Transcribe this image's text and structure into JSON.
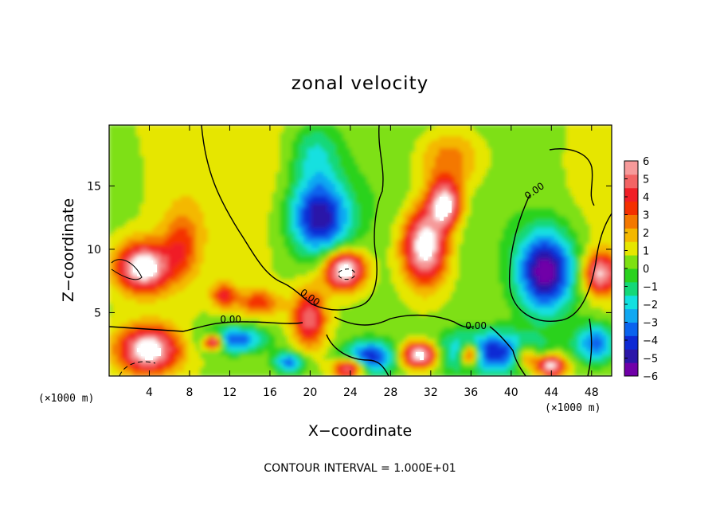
{
  "chart_data": {
    "type": "heatmap",
    "title": "zonal velocity",
    "xlabel": "X−coordinate",
    "ylabel": "Z−coordinate",
    "x_unit_left": "(×1000 m)",
    "x_unit_right": "(×1000 m)",
    "xlim": [
      0,
      50
    ],
    "ylim": [
      0,
      19.8
    ],
    "xticks": [
      4,
      8,
      12,
      16,
      20,
      24,
      28,
      32,
      36,
      40,
      44,
      48
    ],
    "xtick_labels": [
      "4",
      "8",
      "12",
      "16",
      "20",
      "24",
      "28",
      "32",
      "36",
      "40",
      "44",
      "48"
    ],
    "yticks": [
      5,
      10,
      15
    ],
    "ytick_labels": [
      "5",
      "10",
      "15"
    ],
    "colorbar": {
      "min": -6,
      "max": 6,
      "ticks": [
        6,
        5,
        4,
        3,
        2,
        1,
        0,
        -1,
        -2,
        -3,
        -4,
        -5,
        -6
      ],
      "tick_labels": [
        "6",
        "5",
        "4",
        "3",
        "2",
        "1",
        "0",
        "−1",
        "−2",
        "−3",
        "−4",
        "−5",
        "−6"
      ]
    },
    "contour_labels": [
      {
        "text": "0.00",
        "x": 42.5,
        "y": 14.4,
        "angle": -35
      },
      {
        "text": "0.00",
        "x": 19.8,
        "y": 6.0,
        "angle": 35
      },
      {
        "text": "0.00",
        "x": 12.1,
        "y": 4.2,
        "angle": 0
      },
      {
        "text": "0.00",
        "x": 36.5,
        "y": 3.7,
        "angle": 0
      }
    ],
    "features": [
      {
        "x": 3.5,
        "z": 8.5,
        "u": 6.5,
        "sx": 2.6,
        "sz": 1.9
      },
      {
        "x": 7.3,
        "z": 10.2,
        "u": 2.5,
        "sx": 1.8,
        "sz": 2.6
      },
      {
        "x": 4.0,
        "z": 2.0,
        "u": 6.5,
        "sx": 3.0,
        "sz": 1.8
      },
      {
        "x": 1.0,
        "z": 15.5,
        "u": -0.4,
        "sx": 3.5,
        "sz": 4.0
      },
      {
        "x": 21.0,
        "z": 12.5,
        "u": -5.8,
        "sx": 3.0,
        "sz": 3.0
      },
      {
        "x": 20.5,
        "z": 17.5,
        "u": -2.2,
        "sx": 2.5,
        "sz": 2.5
      },
      {
        "x": 23.5,
        "z": 8.3,
        "u": 6.8,
        "sx": 2.0,
        "sz": 1.5
      },
      {
        "x": 31.5,
        "z": 10.2,
        "u": 6.8,
        "sx": 2.2,
        "sz": 3.0
      },
      {
        "x": 33.5,
        "z": 13.5,
        "u": 6.0,
        "sx": 1.6,
        "sz": 1.8
      },
      {
        "x": 34.0,
        "z": 17.0,
        "u": 2.8,
        "sx": 3.5,
        "sz": 2.6
      },
      {
        "x": 43.5,
        "z": 8.2,
        "u": -6.5,
        "sx": 2.8,
        "sz": 3.2
      },
      {
        "x": 49.0,
        "z": 8.0,
        "u": 5.5,
        "sx": 1.6,
        "sz": 1.6
      },
      {
        "x": 38.0,
        "z": 1.8,
        "u": -5.0,
        "sx": 5.0,
        "sz": 1.6
      },
      {
        "x": 31.0,
        "z": 1.6,
        "u": 6.8,
        "sx": 1.8,
        "sz": 1.0
      },
      {
        "x": 36.0,
        "z": 1.6,
        "u": 6.5,
        "sx": 1.0,
        "sz": 0.9
      },
      {
        "x": 26.0,
        "z": 1.4,
        "u": -5.0,
        "sx": 2.5,
        "sz": 1.3
      },
      {
        "x": 10.5,
        "z": 2.6,
        "u": 6.8,
        "sx": 1.0,
        "sz": 0.6
      },
      {
        "x": 12.5,
        "z": 2.8,
        "u": -4.5,
        "sx": 3.0,
        "sz": 1.0
      },
      {
        "x": 20.0,
        "z": 4.5,
        "u": 4.5,
        "sx": 1.6,
        "sz": 2.2
      },
      {
        "x": 18.0,
        "z": 1.0,
        "u": -4.0,
        "sx": 1.5,
        "sz": 0.8
      },
      {
        "x": 24.0,
        "z": 0.6,
        "u": 6.0,
        "sx": 1.5,
        "sz": 0.7
      },
      {
        "x": 11.5,
        "z": 6.3,
        "u": 3.5,
        "sx": 1.2,
        "sz": 0.9
      },
      {
        "x": 15.0,
        "z": 5.7,
        "u": 3.0,
        "sx": 2.0,
        "sz": 1.0
      },
      {
        "x": 44.0,
        "z": 0.8,
        "u": 6.5,
        "sx": 1.5,
        "sz": 0.8
      },
      {
        "x": 48.5,
        "z": 2.5,
        "u": -4.0,
        "sx": 2.0,
        "sz": 1.5
      },
      {
        "x": 41.5,
        "z": 1.5,
        "u": 4.0,
        "sx": 1.2,
        "sz": 1.0
      }
    ],
    "colors": [
      "#7000a8",
      "#2b16a8",
      "#0d2ad4",
      "#0a63ee",
      "#10a8f2",
      "#12e0e0",
      "#14d878",
      "#2ad21e",
      "#7ee012",
      "#e6e600",
      "#f4b800",
      "#f47800",
      "#f43000",
      "#f01e26",
      "#f26464",
      "#f69a9a"
    ]
  },
  "footer": "CONTOUR INTERVAL = 1.000E+01"
}
